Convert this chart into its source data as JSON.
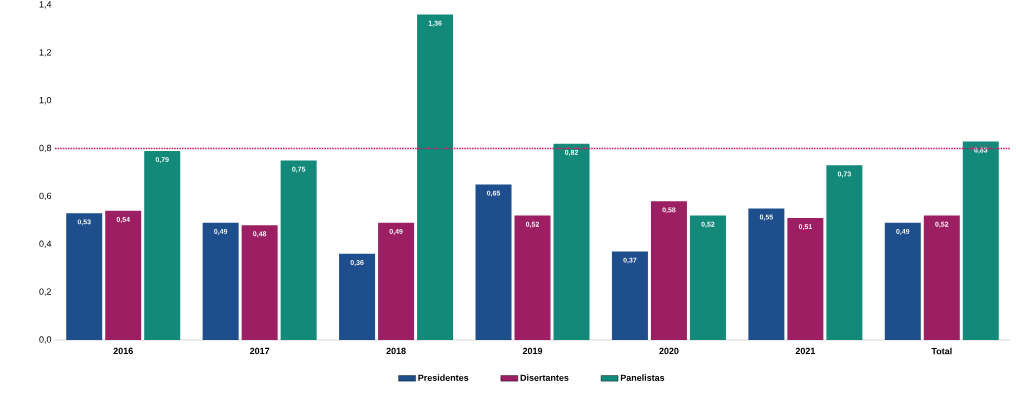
{
  "chart_data": {
    "type": "bar",
    "categories": [
      "2016",
      "2017",
      "2018",
      "2019",
      "2020",
      "2021",
      "Total"
    ],
    "series": [
      {
        "name": "Presidentes",
        "color": "#1f4e8c",
        "values": [
          0.53,
          0.49,
          0.36,
          0.65,
          0.37,
          0.55,
          0.49
        ],
        "value_labels": [
          "0,53",
          "0,49",
          "0,36",
          "0,65",
          "0,37",
          "0,55",
          "0,49"
        ]
      },
      {
        "name": "Disertantes",
        "color": "#9c1f63",
        "values": [
          0.54,
          0.48,
          0.49,
          0.52,
          0.58,
          0.51,
          0.52
        ],
        "value_labels": [
          "0,54",
          "0,48",
          "0,49",
          "0,52",
          "0,58",
          "0,51",
          "0,52"
        ]
      },
      {
        "name": "Panelistas",
        "color": "#13897a",
        "values": [
          0.79,
          0.75,
          1.36,
          0.82,
          0.52,
          0.73,
          0.83
        ],
        "value_labels": [
          "0,79",
          "0,75",
          "1,36",
          "0,82",
          "0,52",
          "0,73",
          "0,83"
        ]
      }
    ],
    "ylim": [
      0,
      1.4
    ],
    "yticks": [
      {
        "value": 0,
        "label": "0,0"
      },
      {
        "value": 0.2,
        "label": "0,2"
      },
      {
        "value": 0.4,
        "label": "0,4"
      },
      {
        "value": 0.6,
        "label": "0,6"
      },
      {
        "value": 0.8,
        "label": "0,8"
      },
      {
        "value": 1.0,
        "label": "1,0"
      },
      {
        "value": 1.2,
        "label": "1,2"
      },
      {
        "value": 1.4,
        "label": "1,4"
      }
    ],
    "ref_lines": [
      {
        "axis": "y",
        "value": 0.8,
        "color": "#c0246a",
        "line_style": "dotted"
      }
    ],
    "legend": "bottom"
  }
}
